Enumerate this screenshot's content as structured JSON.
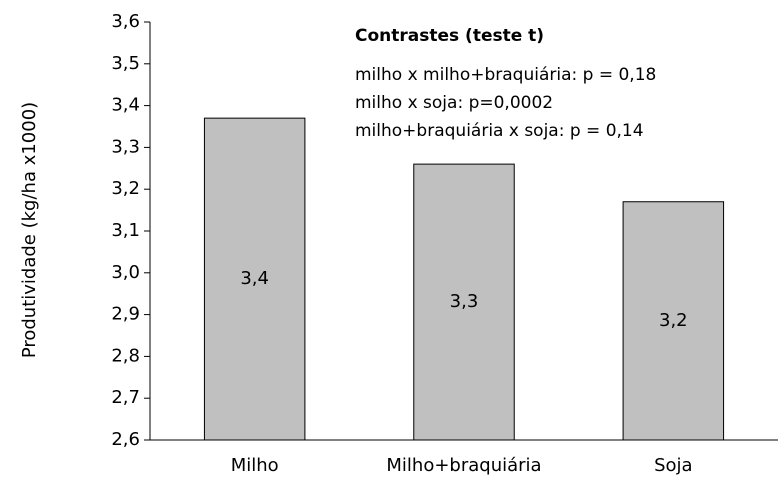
{
  "chart_data": {
    "type": "bar",
    "y_label": "Produtividade (kg/ha x1000)",
    "categories": [
      "Milho",
      "Milho+braquiária",
      "Soja"
    ],
    "values": [
      3.37,
      3.26,
      3.17
    ],
    "value_labels": [
      "3,4",
      "3,3",
      "3,2"
    ],
    "color": "#c0c0c0",
    "ylim": [
      2.6,
      3.6
    ],
    "yticks": [
      {
        "value": 2.6,
        "label": "2,6"
      },
      {
        "value": 2.7,
        "label": "2,7"
      },
      {
        "value": 2.8,
        "label": "2,8"
      },
      {
        "value": 2.9,
        "label": "2,9"
      },
      {
        "value": 3.0,
        "label": "3,0"
      },
      {
        "value": 3.1,
        "label": "3,1"
      },
      {
        "value": 3.2,
        "label": "3,2"
      },
      {
        "value": 3.3,
        "label": "3,3"
      },
      {
        "value": 3.4,
        "label": "3,4"
      },
      {
        "value": 3.5,
        "label": "3,5"
      },
      {
        "value": 3.6,
        "label": "3,6"
      }
    ],
    "grid": false,
    "annotations": {
      "title": "Contrastes (teste t)",
      "lines": [
        "milho x milho+braquiária: p = 0,18",
        "milho x soja:  p=0,0002",
        "milho+braquiária x soja: p = 0,14"
      ]
    }
  }
}
